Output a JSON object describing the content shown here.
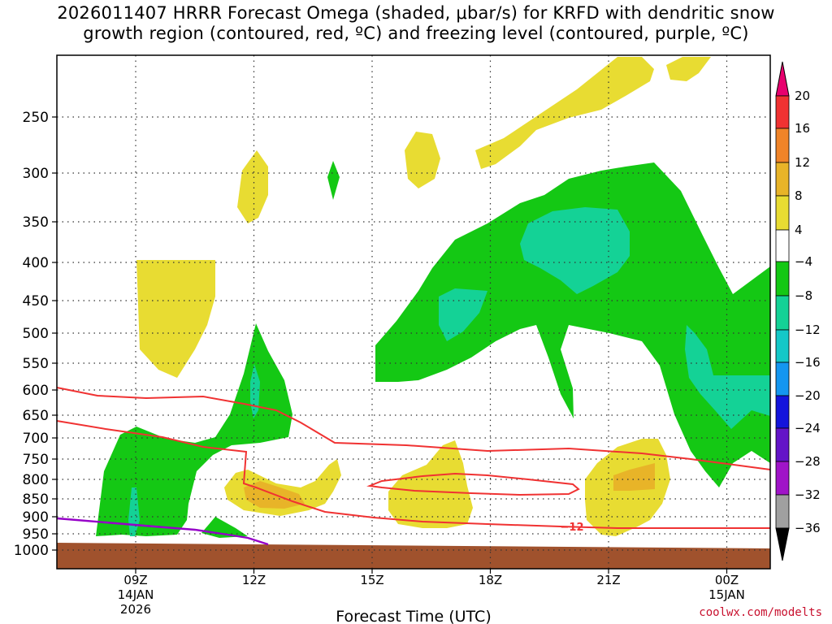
{
  "title": {
    "line1": "2026011407 HRRR Forecast Omega (shaded, μbar/s) for KRFD with dendritic snow",
    "line2": "growth region (contoured, red, ºC) and freezing level (contoured, purple, ºC)"
  },
  "credit": "coolwx.com/modelts",
  "chart_data": {
    "type": "time-height cross-section",
    "xlabel": "Forecast Time (UTC)",
    "ylabel": "",
    "x_ticks": [
      {
        "hour": 9,
        "label": "09Z",
        "sub1": "14JAN",
        "sub2": "2026"
      },
      {
        "hour": 12,
        "label": "12Z",
        "sub1": "",
        "sub2": ""
      },
      {
        "hour": 15,
        "label": "15Z",
        "sub1": "",
        "sub2": ""
      },
      {
        "hour": 18,
        "label": "18Z",
        "sub1": "",
        "sub2": ""
      },
      {
        "hour": 21,
        "label": "21Z",
        "sub1": "",
        "sub2": ""
      },
      {
        "hour": 24,
        "label": "00Z",
        "sub1": "15JAN",
        "sub2": ""
      }
    ],
    "x_range_hours": [
      7,
      25
    ],
    "y_ticks_hpa": [
      250,
      300,
      350,
      400,
      450,
      500,
      550,
      600,
      650,
      700,
      750,
      800,
      850,
      900,
      950,
      1000
    ],
    "y_range_hpa": [
      200,
      1030
    ],
    "colorbar": {
      "labels": [
        "20",
        "16",
        "12",
        "8",
        "4",
        "−4",
        "−8",
        "−12",
        "−16",
        "−20",
        "−24",
        "−28",
        "−32",
        "−36"
      ],
      "colors": [
        "#e8006e",
        "#f03232",
        "#f08428",
        "#e8b428",
        "#e8dc32",
        "#ffffff",
        "#14c814",
        "#14d296",
        "#14c8c8",
        "#1496f0",
        "#1414dc",
        "#6414c8",
        "#a014c8",
        "#a0a0a0",
        "#000000"
      ]
    },
    "omega_fields": [
      {
        "name": "yellow",
        "color": "#e8dc32"
      },
      {
        "name": "orange",
        "color": "#e8b428"
      },
      {
        "name": "green",
        "color": "#14c814"
      },
      {
        "name": "teal",
        "color": "#14d296"
      }
    ],
    "contours": [
      {
        "label": "−12",
        "color": "#f03232",
        "kind": "dendritic growth region"
      },
      {
        "label": "",
        "color": "#9600c8",
        "kind": "freezing level"
      }
    ],
    "surface_color": "#a0522d"
  }
}
